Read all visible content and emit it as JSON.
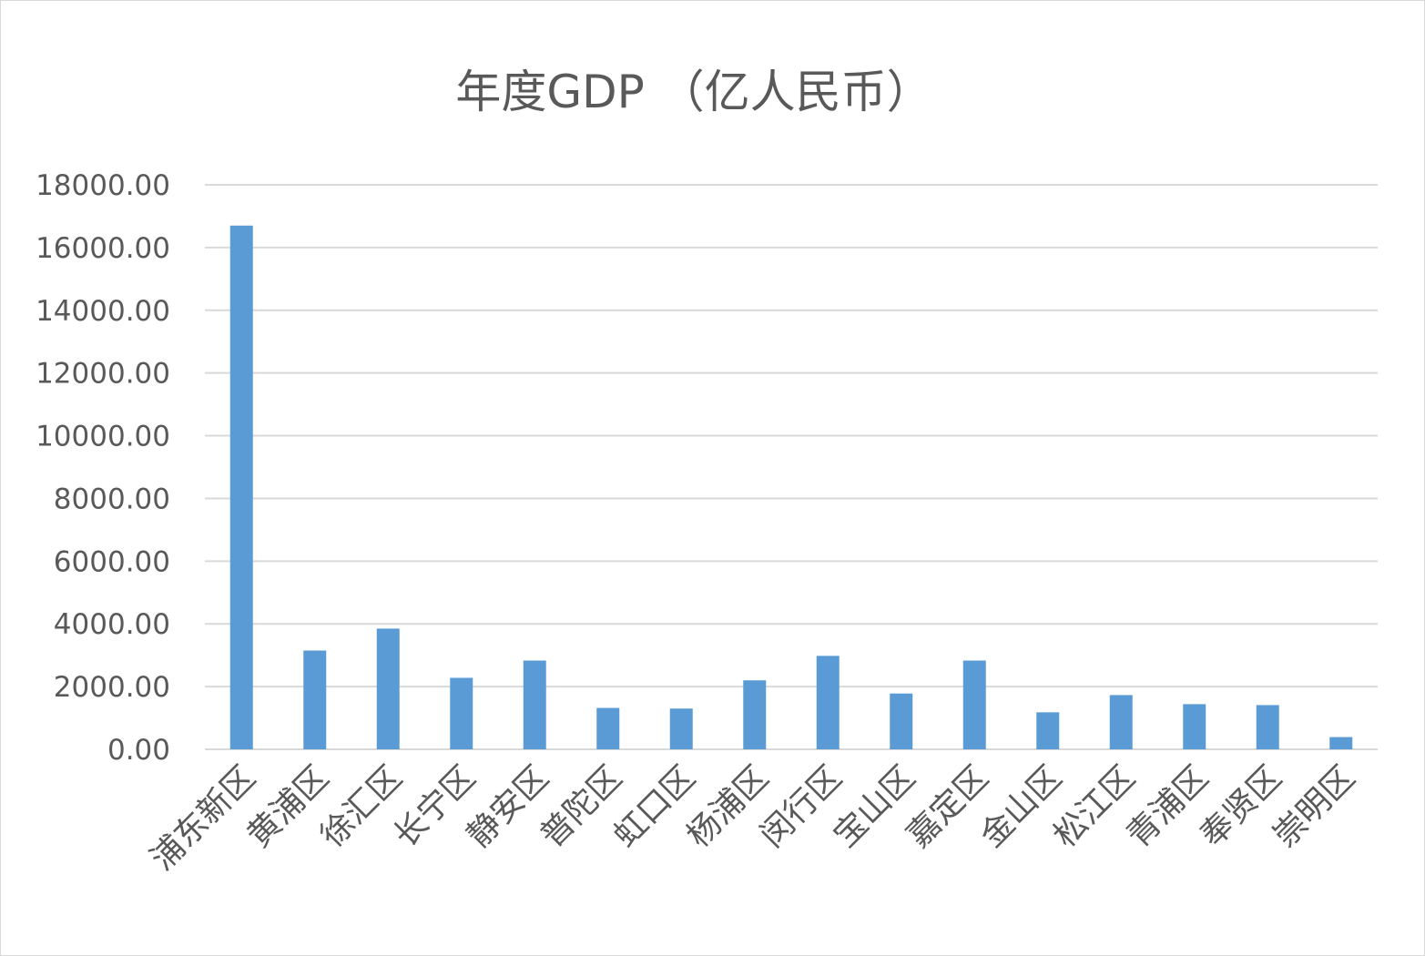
{
  "chart_data": {
    "type": "bar",
    "title": "年度GDP （亿人民币）",
    "xlabel": "",
    "ylabel": "",
    "ylim": [
      0,
      18000
    ],
    "ytick_step": 2000,
    "ytick_labels": [
      "0.00",
      "2000.00",
      "4000.00",
      "6000.00",
      "8000.00",
      "10000.00",
      "12000.00",
      "14000.00",
      "16000.00",
      "18000.00"
    ],
    "grid": true,
    "legend": "none",
    "categories": [
      "浦东新区",
      "黄浦区",
      "徐汇区",
      "长宁区",
      "静安区",
      "普陀区",
      "虹口区",
      "杨浦区",
      "闵行区",
      "宝山区",
      "嘉定区",
      "金山区",
      "松江区",
      "青浦区",
      "奉贤区",
      "崇明区"
    ],
    "values": [
      16700,
      3150,
      3850,
      2280,
      2830,
      1320,
      1300,
      2200,
      2980,
      1780,
      2830,
      1180,
      1730,
      1440,
      1410,
      390
    ],
    "colors": {
      "bar": "#5b9bd5",
      "grid": "#d9d9d9",
      "text": "#595959"
    }
  }
}
